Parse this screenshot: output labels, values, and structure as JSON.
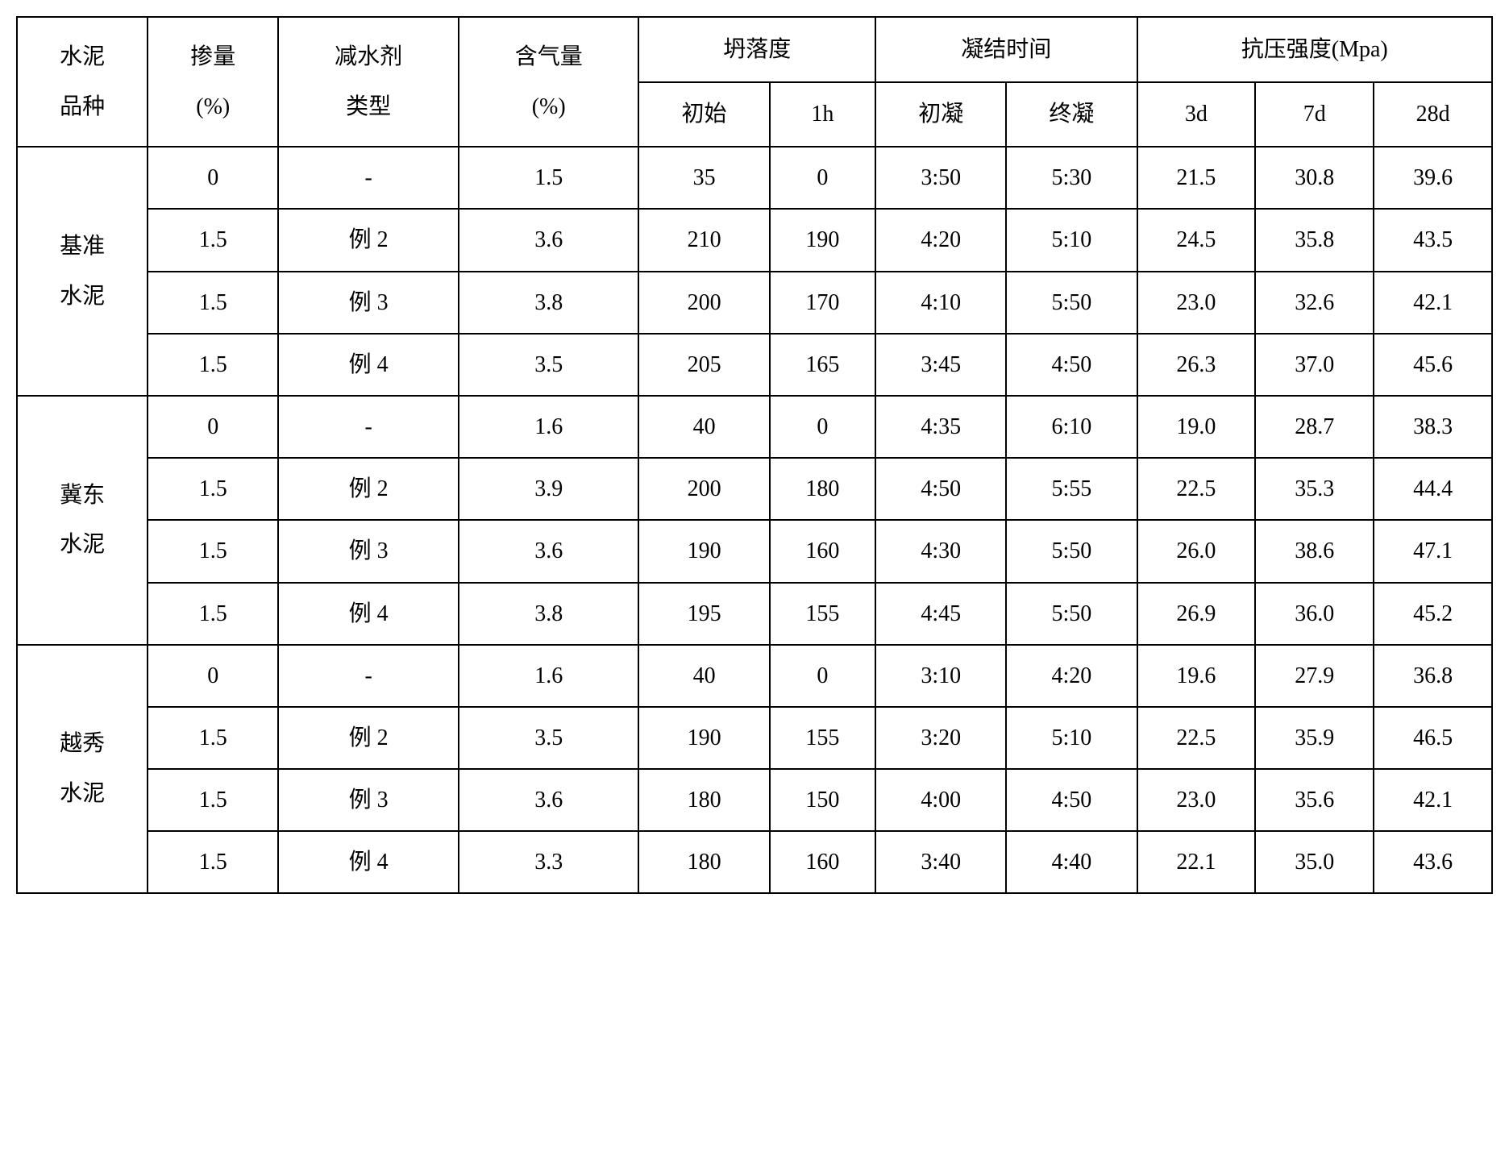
{
  "headers": {
    "col1_line1": "水泥",
    "col1_line2": "品种",
    "col2_line1": "掺量",
    "col2_line2": "(%)",
    "col3_line1": "减水剂",
    "col3_line2": "类型",
    "col4_line1": "含气量",
    "col4_line2": "(%)",
    "col5_group": "坍落度",
    "col5_sub1": "初始",
    "col5_sub2": "1h",
    "col6_group": "凝结时间",
    "col6_sub1": "初凝",
    "col6_sub2": "终凝",
    "col7_group": "抗压强度(Mpa)",
    "col7_sub1": "3d",
    "col7_sub2": "7d",
    "col7_sub3": "28d"
  },
  "groups": [
    {
      "name_line1": "基准",
      "name_line2": "水泥",
      "rows": [
        {
          "dosage": "0",
          "type": "-",
          "air": "1.5",
          "slump_init": "35",
          "slump_1h": "0",
          "set_init": "3:50",
          "set_final": "5:30",
          "s3d": "21.5",
          "s7d": "30.8",
          "s28d": "39.6"
        },
        {
          "dosage": "1.5",
          "type": "例 2",
          "air": "3.6",
          "slump_init": "210",
          "slump_1h": "190",
          "set_init": "4:20",
          "set_final": "5:10",
          "s3d": "24.5",
          "s7d": "35.8",
          "s28d": "43.5"
        },
        {
          "dosage": "1.5",
          "type": "例 3",
          "air": "3.8",
          "slump_init": "200",
          "slump_1h": "170",
          "set_init": "4:10",
          "set_final": "5:50",
          "s3d": "23.0",
          "s7d": "32.6",
          "s28d": "42.1"
        },
        {
          "dosage": "1.5",
          "type": "例 4",
          "air": "3.5",
          "slump_init": "205",
          "slump_1h": "165",
          "set_init": "3:45",
          "set_final": "4:50",
          "s3d": "26.3",
          "s7d": "37.0",
          "s28d": "45.6"
        }
      ]
    },
    {
      "name_line1": "冀东",
      "name_line2": "水泥",
      "rows": [
        {
          "dosage": "0",
          "type": "-",
          "air": "1.6",
          "slump_init": "40",
          "slump_1h": "0",
          "set_init": "4:35",
          "set_final": "6:10",
          "s3d": "19.0",
          "s7d": "28.7",
          "s28d": "38.3"
        },
        {
          "dosage": "1.5",
          "type": "例 2",
          "air": "3.9",
          "slump_init": "200",
          "slump_1h": "180",
          "set_init": "4:50",
          "set_final": "5:55",
          "s3d": "22.5",
          "s7d": "35.3",
          "s28d": "44.4"
        },
        {
          "dosage": "1.5",
          "type": "例 3",
          "air": "3.6",
          "slump_init": "190",
          "slump_1h": "160",
          "set_init": "4:30",
          "set_final": "5:50",
          "s3d": "26.0",
          "s7d": "38.6",
          "s28d": "47.1"
        },
        {
          "dosage": "1.5",
          "type": "例 4",
          "air": "3.8",
          "slump_init": "195",
          "slump_1h": "155",
          "set_init": "4:45",
          "set_final": "5:50",
          "s3d": "26.9",
          "s7d": "36.0",
          "s28d": "45.2"
        }
      ]
    },
    {
      "name_line1": "越秀",
      "name_line2": "水泥",
      "rows": [
        {
          "dosage": "0",
          "type": "-",
          "air": "1.6",
          "slump_init": "40",
          "slump_1h": "0",
          "set_init": "3:10",
          "set_final": "4:20",
          "s3d": "19.6",
          "s7d": "27.9",
          "s28d": "36.8"
        },
        {
          "dosage": "1.5",
          "type": "例 2",
          "air": "3.5",
          "slump_init": "190",
          "slump_1h": "155",
          "set_init": "3:20",
          "set_final": "5:10",
          "s3d": "22.5",
          "s7d": "35.9",
          "s28d": "46.5"
        },
        {
          "dosage": "1.5",
          "type": "例 3",
          "air": "3.6",
          "slump_init": "180",
          "slump_1h": "150",
          "set_init": "4:00",
          "set_final": "4:50",
          "s3d": "23.0",
          "s7d": "35.6",
          "s28d": "42.1"
        },
        {
          "dosage": "1.5",
          "type": "例 4",
          "air": "3.3",
          "slump_init": "180",
          "slump_1h": "160",
          "set_init": "3:40",
          "set_final": "4:40",
          "s3d": "22.1",
          "s7d": "35.0",
          "s28d": "43.6"
        }
      ]
    }
  ]
}
